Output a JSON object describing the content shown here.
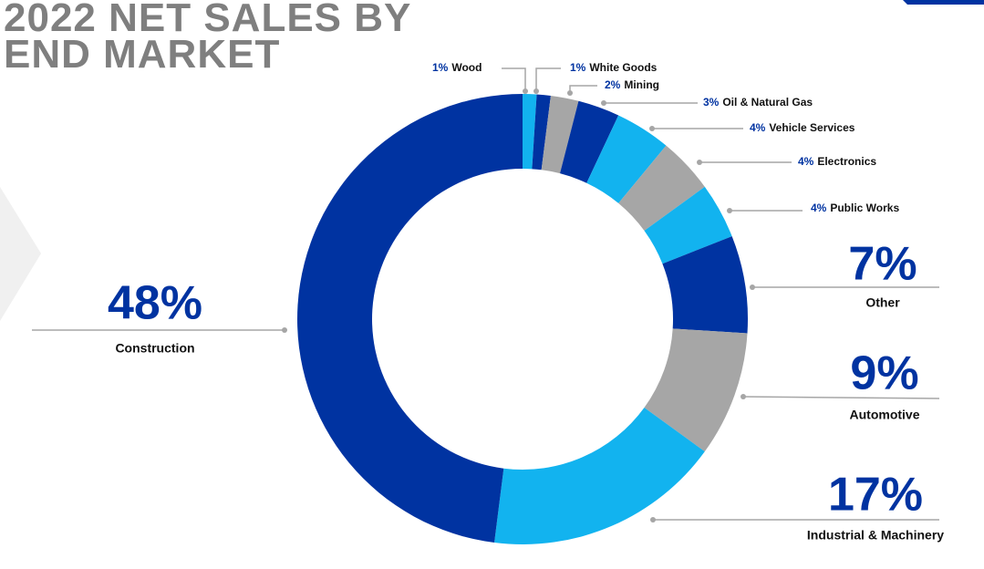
{
  "chart_data": {
    "type": "donut",
    "title": "2022 NET SALES BY END MARKET",
    "categories": [
      "Wood",
      "White Goods",
      "Mining",
      "Oil & Natural Gas",
      "Vehicle Services",
      "Electronics",
      "Public Works",
      "Other",
      "Automotive",
      "Industrial & Machinery",
      "Construction"
    ],
    "values": [
      1,
      1,
      2,
      3,
      4,
      4,
      4,
      7,
      9,
      17,
      48
    ],
    "value_labels": [
      "1%",
      "1%",
      "2%",
      "3%",
      "4%",
      "4%",
      "4%",
      "7%",
      "9%",
      "17%",
      "48%"
    ],
    "colors": [
      "#12b3ef",
      "#0033a1",
      "#a6a6a6",
      "#0033a1",
      "#12b3ef",
      "#a6a6a6",
      "#12b3ef",
      "#0033a1",
      "#a6a6a6",
      "#12b3ef",
      "#0033a1"
    ]
  }
}
